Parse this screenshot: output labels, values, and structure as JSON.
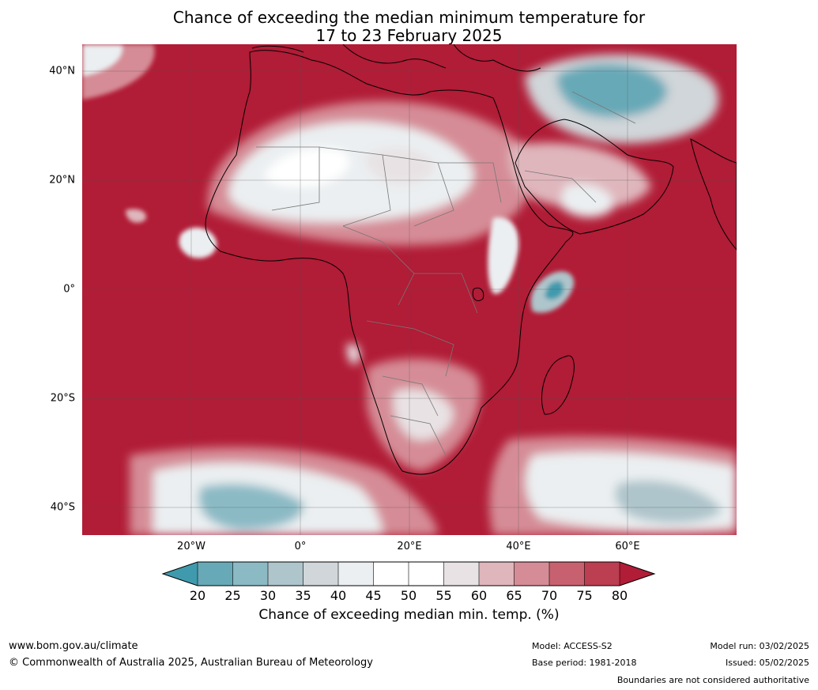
{
  "title": {
    "line1": "Chance of exceeding the median minimum temperature for",
    "line2": "17 to 23 February 2025"
  },
  "map": {
    "region": "Africa",
    "lat_labels": [
      "40°N",
      "20°N",
      "0°",
      "20°S",
      "40°S"
    ],
    "lon_labels": [
      "20°W",
      "0°",
      "20°E",
      "40°E",
      "60°E"
    ],
    "dominant_color": "#b11c36"
  },
  "colorbar": {
    "ticks": [
      "20",
      "25",
      "30",
      "35",
      "40",
      "45",
      "50",
      "55",
      "60",
      "65",
      "70",
      "75",
      "80"
    ],
    "colors": [
      "#3f9aad",
      "#68a9b7",
      "#8bbac5",
      "#aec5cb",
      "#d0d6d9",
      "#ebeff1",
      "#ffffff",
      "#ffffff",
      "#e8e2e4",
      "#dfb6bc",
      "#d58c96",
      "#c8616f",
      "#bc3e51",
      "#b11c36"
    ],
    "label": "Chance of exceeding median min. temp. (%)"
  },
  "footer": {
    "url": "www.bom.gov.au/climate",
    "copyright": "© Commonwealth of Australia 2025, Australian Bureau of Meteorology",
    "model": "Model: ACCESS-S2",
    "base_period": "Base period: 1981-2018",
    "model_run": "Model run: 03/02/2025",
    "issued": "Issued: 05/02/2025",
    "boundaries": "Boundaries are not considered authoritative"
  }
}
